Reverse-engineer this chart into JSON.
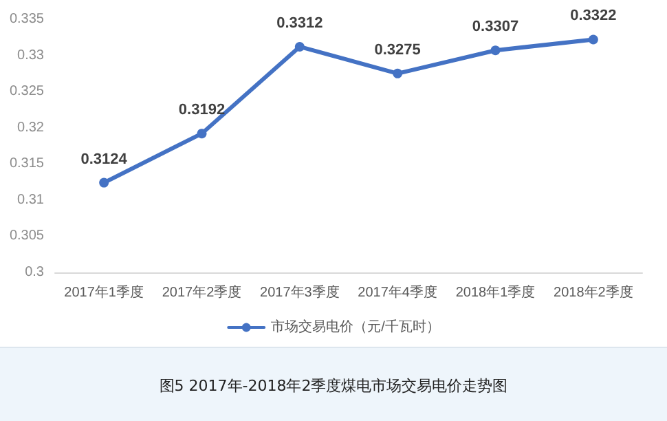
{
  "chart_data": {
    "type": "line",
    "categories": [
      "2017年1季度",
      "2017年2季度",
      "2017年3季度",
      "2017年4季度",
      "2018年1季度",
      "2018年2季度"
    ],
    "series": [
      {
        "name": "市场交易电价（元/千瓦时）",
        "color": "#4472c4",
        "values": [
          0.3124,
          0.3192,
          0.3312,
          0.3275,
          0.3307,
          0.3322
        ]
      }
    ],
    "ylim": [
      0.3,
      0.335
    ],
    "yticks": [
      0.3,
      0.305,
      0.31,
      0.315,
      0.32,
      0.325,
      0.33,
      0.335
    ],
    "data_labels": true,
    "grid": false,
    "legend": "bottom",
    "marker": "circle",
    "line_style": "solid",
    "annotations": [
      "图5 2017年-2018年2季度煤电市场交易电价走势图"
    ]
  }
}
